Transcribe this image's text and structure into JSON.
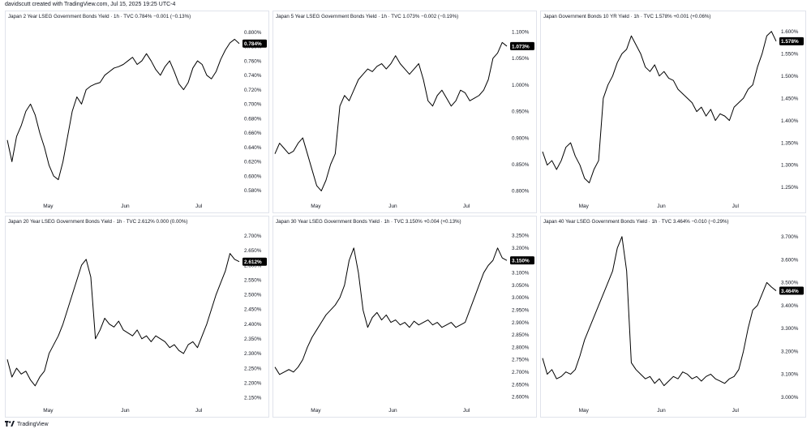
{
  "header": "davidscutt created with TradingView.com, Jul 15, 2025 19:25 UTC-4",
  "footer": {
    "brand": "TradingView",
    "logo_icon": "tradingview-logo-icon"
  },
  "colors": {
    "line": "#000000",
    "badge": "#000000",
    "badge_text": "#ffffff",
    "border": "#e0e3eb",
    "axis_text": "#131722"
  },
  "chart_data": [
    {
      "type": "line",
      "title": "Japan 2 Year LSEG Government Bonds Yield · 1h · TVC  0.784%  −0.001 (−0.13%)",
      "last_value": "0.784%",
      "x_ticks": [
        "May",
        "Jun",
        "Jul"
      ],
      "y_ticks": [
        "0.580%",
        "0.600%",
        "0.620%",
        "0.640%",
        "0.660%",
        "0.680%",
        "0.700%",
        "0.720%",
        "0.740%",
        "0.760%",
        "0.780%",
        "0.800%"
      ],
      "ylim": [
        0.572,
        0.804
      ],
      "series": [
        {
          "values": [
            0.65,
            0.62,
            0.655,
            0.67,
            0.69,
            0.7,
            0.685,
            0.66,
            0.64,
            0.615,
            0.6,
            0.595,
            0.62,
            0.655,
            0.69,
            0.71,
            0.7,
            0.72,
            0.725,
            0.728,
            0.73,
            0.74,
            0.745,
            0.75,
            0.752,
            0.755,
            0.76,
            0.765,
            0.755,
            0.76,
            0.77,
            0.76,
            0.748,
            0.74,
            0.752,
            0.76,
            0.745,
            0.728,
            0.72,
            0.73,
            0.75,
            0.76,
            0.755,
            0.74,
            0.735,
            0.745,
            0.762,
            0.775,
            0.785,
            0.79,
            0.784
          ]
        }
      ]
    },
    {
      "type": "line",
      "title": "Japan 5 Year LSEG Government Bonds Yield · 1h · TVC  1.073%  −0.002 (−0.19%)",
      "last_value": "1.073%",
      "x_ticks": [
        "May",
        "Jun",
        "Jul"
      ],
      "y_ticks": [
        "0.800%",
        "0.850%",
        "0.900%",
        "0.950%",
        "1.000%",
        "1.050%",
        "1.100%"
      ],
      "ylim": [
        0.79,
        1.105
      ],
      "series": [
        {
          "values": [
            0.87,
            0.89,
            0.88,
            0.87,
            0.875,
            0.89,
            0.9,
            0.87,
            0.84,
            0.81,
            0.8,
            0.82,
            0.85,
            0.87,
            0.96,
            0.98,
            0.97,
            0.99,
            1.01,
            1.02,
            1.03,
            1.025,
            1.035,
            1.04,
            1.03,
            1.04,
            1.055,
            1.04,
            1.03,
            1.02,
            1.03,
            1.04,
            1.01,
            0.97,
            0.96,
            0.98,
            0.99,
            0.975,
            0.96,
            0.97,
            0.99,
            0.985,
            0.97,
            0.975,
            0.98,
            0.99,
            1.01,
            1.05,
            1.06,
            1.08,
            1.073
          ]
        }
      ]
    },
    {
      "type": "line",
      "title": "Japan Government Bonds 10 YR Yield · 1h · TVC  1.578%  +0.001 (+0.06%)",
      "last_value": "1.578%",
      "x_ticks": [
        "May",
        "Jun",
        "Jul"
      ],
      "y_ticks": [
        "1.250%",
        "1.300%",
        "1.350%",
        "1.400%",
        "1.450%",
        "1.500%",
        "1.550%",
        "1.600%"
      ],
      "ylim": [
        1.23,
        1.605
      ],
      "series": [
        {
          "values": [
            1.33,
            1.3,
            1.31,
            1.29,
            1.31,
            1.34,
            1.35,
            1.32,
            1.3,
            1.27,
            1.26,
            1.29,
            1.31,
            1.45,
            1.48,
            1.5,
            1.53,
            1.55,
            1.56,
            1.59,
            1.57,
            1.55,
            1.52,
            1.51,
            1.525,
            1.5,
            1.51,
            1.495,
            1.49,
            1.47,
            1.46,
            1.45,
            1.44,
            1.42,
            1.43,
            1.41,
            1.425,
            1.4,
            1.415,
            1.41,
            1.4,
            1.43,
            1.44,
            1.45,
            1.47,
            1.48,
            1.52,
            1.55,
            1.59,
            1.6,
            1.578
          ]
        }
      ]
    },
    {
      "type": "line",
      "title": "Japan 20 Year LSEG Government Bonds Yield · 1h · TVC  2.612%  0.000 (0.00%)",
      "last_value": "2.612%",
      "x_ticks": [
        "May",
        "Jun",
        "Jul"
      ],
      "y_ticks": [
        "2.150%",
        "2.200%",
        "2.250%",
        "2.300%",
        "2.350%",
        "2.400%",
        "2.450%",
        "2.500%",
        "2.550%",
        "2.600%",
        "2.650%",
        "2.700%"
      ],
      "ylim": [
        2.14,
        2.705
      ],
      "series": [
        {
          "values": [
            2.28,
            2.22,
            2.25,
            2.23,
            2.24,
            2.21,
            2.19,
            2.22,
            2.24,
            2.3,
            2.33,
            2.36,
            2.4,
            2.45,
            2.5,
            2.55,
            2.6,
            2.62,
            2.56,
            2.35,
            2.38,
            2.42,
            2.4,
            2.39,
            2.41,
            2.38,
            2.37,
            2.36,
            2.38,
            2.35,
            2.36,
            2.34,
            2.36,
            2.35,
            2.34,
            2.32,
            2.33,
            2.31,
            2.3,
            2.33,
            2.34,
            2.32,
            2.36,
            2.4,
            2.45,
            2.5,
            2.54,
            2.58,
            2.64,
            2.62,
            2.612
          ]
        }
      ]
    },
    {
      "type": "line",
      "title": "Japan 30 Year LSEG Government Bonds Yield · 1h · TVC  3.150%  +0.004 (+0.13%)",
      "last_value": "3.150%",
      "x_ticks": [
        "May",
        "Jun",
        "Jul"
      ],
      "y_ticks": [
        "2.600%",
        "2.650%",
        "2.700%",
        "2.750%",
        "2.800%",
        "2.850%",
        "2.900%",
        "2.950%",
        "3.000%",
        "3.050%",
        "3.100%",
        "3.150%",
        "3.200%",
        "3.250%"
      ],
      "ylim": [
        2.585,
        3.255
      ],
      "series": [
        {
          "values": [
            2.72,
            2.69,
            2.7,
            2.71,
            2.7,
            2.72,
            2.75,
            2.8,
            2.84,
            2.87,
            2.9,
            2.93,
            2.95,
            2.97,
            3.0,
            3.05,
            3.15,
            3.2,
            3.1,
            2.95,
            2.88,
            2.92,
            2.94,
            2.91,
            2.93,
            2.9,
            2.91,
            2.89,
            2.9,
            2.88,
            2.905,
            2.89,
            2.9,
            2.91,
            2.89,
            2.9,
            2.88,
            2.89,
            2.9,
            2.88,
            2.89,
            2.9,
            2.95,
            3.0,
            3.05,
            3.1,
            3.13,
            3.15,
            3.2,
            3.16,
            3.15
          ]
        }
      ]
    },
    {
      "type": "line",
      "title": "Japan 40 Year LSEG Government Bonds Yield · 1h · TVC  3.464%  −0.010 (−0.29%)",
      "last_value": "3.464%",
      "x_ticks": [
        "May",
        "Jun",
        "Jul"
      ],
      "y_ticks": [
        "3.000%",
        "3.100%",
        "3.200%",
        "3.300%",
        "3.400%",
        "3.500%",
        "3.600%",
        "3.700%"
      ],
      "ylim": [
        2.985,
        3.71
      ],
      "series": [
        {
          "values": [
            3.17,
            3.1,
            3.12,
            3.08,
            3.09,
            3.11,
            3.1,
            3.12,
            3.18,
            3.25,
            3.3,
            3.35,
            3.4,
            3.45,
            3.5,
            3.55,
            3.65,
            3.7,
            3.55,
            3.15,
            3.12,
            3.1,
            3.08,
            3.09,
            3.06,
            3.08,
            3.05,
            3.07,
            3.09,
            3.08,
            3.11,
            3.1,
            3.08,
            3.09,
            3.07,
            3.09,
            3.1,
            3.08,
            3.07,
            3.06,
            3.08,
            3.09,
            3.12,
            3.2,
            3.3,
            3.38,
            3.4,
            3.45,
            3.5,
            3.48,
            3.464
          ]
        }
      ]
    }
  ]
}
